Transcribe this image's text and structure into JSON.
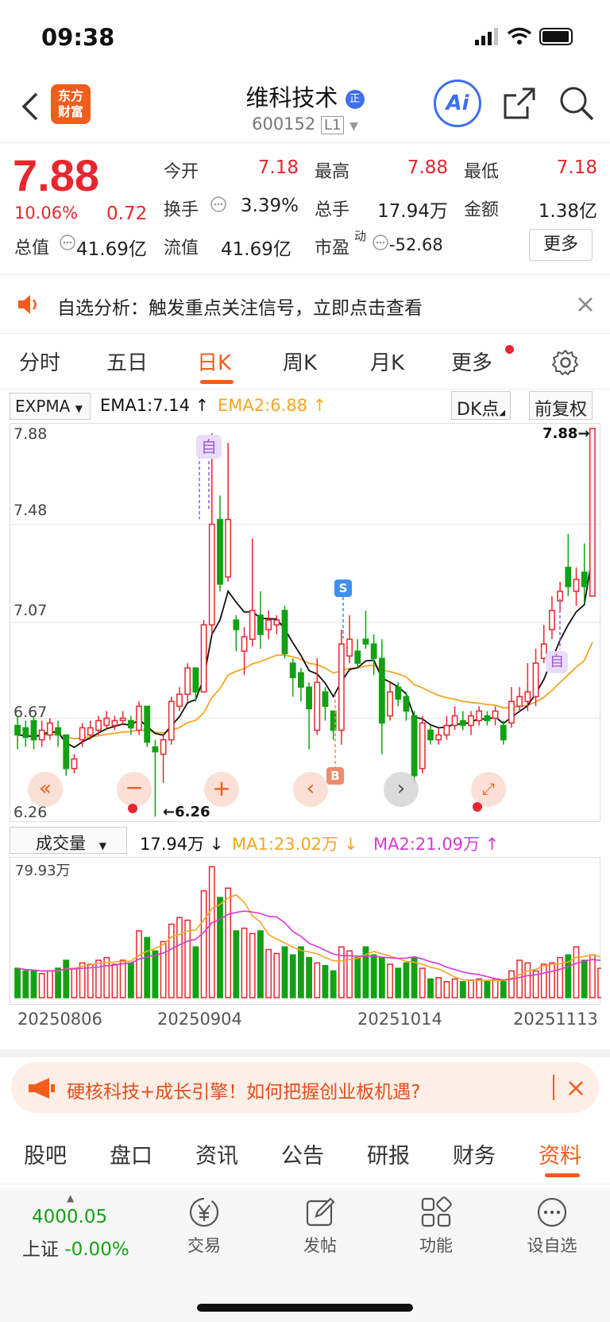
{
  "status": {
    "time": "09:38"
  },
  "header": {
    "logo_text": "东方\n财富",
    "title": "维科技术",
    "title_badge": "正",
    "code": "600152",
    "level": "L1",
    "ai_label": "Ai"
  },
  "quote": {
    "price": "7.88",
    "change_pct": "10.06%",
    "change_amt": "0.72",
    "rows": [
      [
        {
          "label": "今开",
          "value": "7.18",
          "color": "red"
        },
        {
          "label": "最高",
          "value": "7.88",
          "color": "red"
        },
        {
          "label": "最低",
          "value": "7.18",
          "color": "red"
        }
      ],
      [
        {
          "label": "换手",
          "value": "3.39%",
          "color": "black"
        },
        {
          "label": "总手",
          "value": "17.94万",
          "color": "black"
        },
        {
          "label": "金额",
          "value": "1.38亿",
          "color": "black"
        }
      ]
    ],
    "total_value_label": "总值",
    "total_value": "41.69亿",
    "float_value_label": "流值",
    "float_value": "41.69亿",
    "pe_label": "市盈",
    "pe_sup": "动",
    "pe_value": "-52.68",
    "more_label": "更多"
  },
  "notice": {
    "text": "自选分析：触发重点关注信号，立即点击查看"
  },
  "period_tabs": [
    "分时",
    "五日",
    "日K",
    "周K",
    "月K",
    "更多"
  ],
  "indicator": {
    "name": "EXPMA",
    "ema1": "EMA1:7.14",
    "ema2": "EMA2:6.88",
    "dk_label": "DK点",
    "adjust_label": "前复权"
  },
  "main_chart": {
    "y_labels": [
      "7.88",
      "7.48",
      "7.07",
      "6.67",
      "6.26"
    ],
    "high_label": "7.88→",
    "low_label": "←6.26",
    "marker_zi": "自",
    "marker_s": "S",
    "marker_b": "B"
  },
  "volume": {
    "name": "成交量",
    "vol": "17.94万",
    "ma1": "MA1:23.02万",
    "ma2": "MA2:21.09万",
    "max_label": "79.93万"
  },
  "dates": [
    "20250806",
    "20250904",
    "20251014",
    "20251113"
  ],
  "promo": {
    "text": "硬核科技+成长引擎！如何把握创业板机遇?"
  },
  "sub_tabs": [
    "股吧",
    "盘口",
    "资讯",
    "公告",
    "研报",
    "财务",
    "资料"
  ],
  "footer": {
    "index_value": "4000.05",
    "index_name": "上证",
    "index_change": "-0.00%",
    "items": [
      {
        "label": "交易",
        "icon": "yen-icon"
      },
      {
        "label": "发帖",
        "icon": "edit-icon"
      },
      {
        "label": "功能",
        "icon": "grid-icon"
      },
      {
        "label": "设自选",
        "icon": "dots-icon"
      }
    ]
  },
  "chart_data": {
    "type": "candlestick",
    "y_range": [
      6.26,
      7.88
    ],
    "candles": [
      {
        "o": 6.64,
        "c": 6.6,
        "h": 6.68,
        "l": 6.54
      },
      {
        "o": 6.63,
        "c": 6.59,
        "h": 6.66,
        "l": 6.55
      },
      {
        "o": 6.66,
        "c": 6.58,
        "h": 6.68,
        "l": 6.54
      },
      {
        "o": 6.58,
        "c": 6.62,
        "h": 6.66,
        "l": 6.55
      },
      {
        "o": 6.6,
        "c": 6.65,
        "h": 6.67,
        "l": 6.58
      },
      {
        "o": 6.63,
        "c": 6.6,
        "h": 6.66,
        "l": 6.55
      },
      {
        "o": 6.6,
        "c": 6.46,
        "h": 6.6,
        "l": 6.43
      },
      {
        "o": 6.46,
        "c": 6.5,
        "h": 6.52,
        "l": 6.44
      },
      {
        "o": 6.58,
        "c": 6.63,
        "h": 6.65,
        "l": 6.55
      },
      {
        "o": 6.6,
        "c": 6.63,
        "h": 6.66,
        "l": 6.58
      },
      {
        "o": 6.62,
        "c": 6.66,
        "h": 6.68,
        "l": 6.6
      },
      {
        "o": 6.64,
        "c": 6.67,
        "h": 6.7,
        "l": 6.62
      },
      {
        "o": 6.64,
        "c": 6.66,
        "h": 6.68,
        "l": 6.62
      },
      {
        "o": 6.66,
        "c": 6.67,
        "h": 6.7,
        "l": 6.64
      },
      {
        "o": 6.66,
        "c": 6.63,
        "h": 6.68,
        "l": 6.6
      },
      {
        "o": 6.62,
        "c": 6.72,
        "h": 6.74,
        "l": 6.6
      },
      {
        "o": 6.72,
        "c": 6.57,
        "h": 6.72,
        "l": 6.55
      },
      {
        "o": 6.55,
        "c": 6.53,
        "h": 6.58,
        "l": 6.26
      },
      {
        "o": 6.52,
        "c": 6.58,
        "h": 6.6,
        "l": 6.4
      },
      {
        "o": 6.58,
        "c": 6.74,
        "h": 6.76,
        "l": 6.56
      },
      {
        "o": 6.72,
        "c": 6.77,
        "h": 6.8,
        "l": 6.7
      },
      {
        "o": 6.77,
        "c": 6.88,
        "h": 6.9,
        "l": 6.74
      },
      {
        "o": 6.88,
        "c": 6.78,
        "h": 6.88,
        "l": 6.74
      },
      {
        "o": 6.78,
        "c": 7.06,
        "h": 7.08,
        "l": 6.78
      },
      {
        "o": 7.06,
        "c": 7.48,
        "h": 7.86,
        "l": 7.02
      },
      {
        "o": 7.5,
        "c": 7.23,
        "h": 7.6,
        "l": 7.2
      },
      {
        "o": 7.26,
        "c": 7.5,
        "h": 7.82,
        "l": 7.24
      },
      {
        "o": 7.08,
        "c": 7.04,
        "h": 7.1,
        "l": 6.95
      },
      {
        "o": 6.95,
        "c": 7.01,
        "h": 7.05,
        "l": 6.85
      },
      {
        "o": 7.0,
        "c": 7.12,
        "h": 7.42,
        "l": 6.97
      },
      {
        "o": 7.1,
        "c": 7.02,
        "h": 7.2,
        "l": 6.96
      },
      {
        "o": 7.04,
        "c": 7.08,
        "h": 7.12,
        "l": 7.0
      },
      {
        "o": 7.06,
        "c": 7.08,
        "h": 7.1,
        "l": 7.02
      },
      {
        "o": 7.12,
        "c": 6.94,
        "h": 7.14,
        "l": 6.92
      },
      {
        "o": 6.9,
        "c": 6.84,
        "h": 6.92,
        "l": 6.76
      },
      {
        "o": 6.86,
        "c": 6.8,
        "h": 6.88,
        "l": 6.74
      },
      {
        "o": 6.8,
        "c": 6.71,
        "h": 6.82,
        "l": 6.54
      },
      {
        "o": 6.62,
        "c": 6.82,
        "h": 6.92,
        "l": 6.6
      },
      {
        "o": 6.78,
        "c": 6.72,
        "h": 6.8,
        "l": 6.66
      },
      {
        "o": 6.7,
        "c": 6.62,
        "h": 6.7,
        "l": 6.58
      },
      {
        "o": 6.62,
        "c": 6.98,
        "h": 7.04,
        "l": 6.56
      },
      {
        "o": 6.93,
        "c": 7.0,
        "h": 7.1,
        "l": 6.9
      },
      {
        "o": 6.95,
        "c": 6.9,
        "h": 7.0,
        "l": 6.88
      },
      {
        "o": 7.0,
        "c": 6.98,
        "h": 7.12,
        "l": 6.96
      },
      {
        "o": 6.98,
        "c": 6.92,
        "h": 7.02,
        "l": 6.85
      },
      {
        "o": 6.92,
        "c": 6.65,
        "h": 7.0,
        "l": 6.52
      },
      {
        "o": 6.68,
        "c": 6.78,
        "h": 6.82,
        "l": 6.66
      },
      {
        "o": 6.8,
        "c": 6.75,
        "h": 6.82,
        "l": 6.72
      },
      {
        "o": 6.76,
        "c": 6.7,
        "h": 6.78,
        "l": 6.66
      },
      {
        "o": 6.68,
        "c": 6.43,
        "h": 6.7,
        "l": 6.4
      },
      {
        "o": 6.46,
        "c": 6.65,
        "h": 6.68,
        "l": 6.44
      },
      {
        "o": 6.62,
        "c": 6.58,
        "h": 6.64,
        "l": 6.56
      },
      {
        "o": 6.58,
        "c": 6.6,
        "h": 6.63,
        "l": 6.56
      },
      {
        "o": 6.6,
        "c": 6.64,
        "h": 6.68,
        "l": 6.58
      },
      {
        "o": 6.64,
        "c": 6.68,
        "h": 6.72,
        "l": 6.62
      },
      {
        "o": 6.66,
        "c": 6.64,
        "h": 6.7,
        "l": 6.62
      },
      {
        "o": 6.64,
        "c": 6.68,
        "h": 6.7,
        "l": 6.6
      },
      {
        "o": 6.66,
        "c": 6.7,
        "h": 6.72,
        "l": 6.64
      },
      {
        "o": 6.68,
        "c": 6.66,
        "h": 6.7,
        "l": 6.64
      },
      {
        "o": 6.67,
        "c": 6.7,
        "h": 6.72,
        "l": 6.64
      },
      {
        "o": 6.64,
        "c": 6.58,
        "h": 6.66,
        "l": 6.56
      },
      {
        "o": 6.65,
        "c": 6.74,
        "h": 6.8,
        "l": 6.63
      },
      {
        "o": 6.72,
        "c": 6.76,
        "h": 6.8,
        "l": 6.7
      },
      {
        "o": 6.74,
        "c": 6.78,
        "h": 6.9,
        "l": 6.7
      },
      {
        "o": 6.76,
        "c": 6.9,
        "h": 6.96,
        "l": 6.72
      },
      {
        "o": 6.92,
        "c": 6.98,
        "h": 7.06,
        "l": 6.9
      },
      {
        "o": 7.04,
        "c": 7.12,
        "h": 7.18,
        "l": 7.0
      },
      {
        "o": 7.16,
        "c": 7.2,
        "h": 7.24,
        "l": 7.12
      },
      {
        "o": 7.3,
        "c": 7.22,
        "h": 7.44,
        "l": 7.18
      },
      {
        "o": 7.2,
        "c": 7.25,
        "h": 7.3,
        "l": 7.14
      },
      {
        "o": 7.28,
        "c": 7.22,
        "h": 7.4,
        "l": 7.15
      },
      {
        "o": 7.18,
        "c": 7.88,
        "h": 7.88,
        "l": 7.18
      }
    ],
    "volume_max_label": "79.93万"
  }
}
